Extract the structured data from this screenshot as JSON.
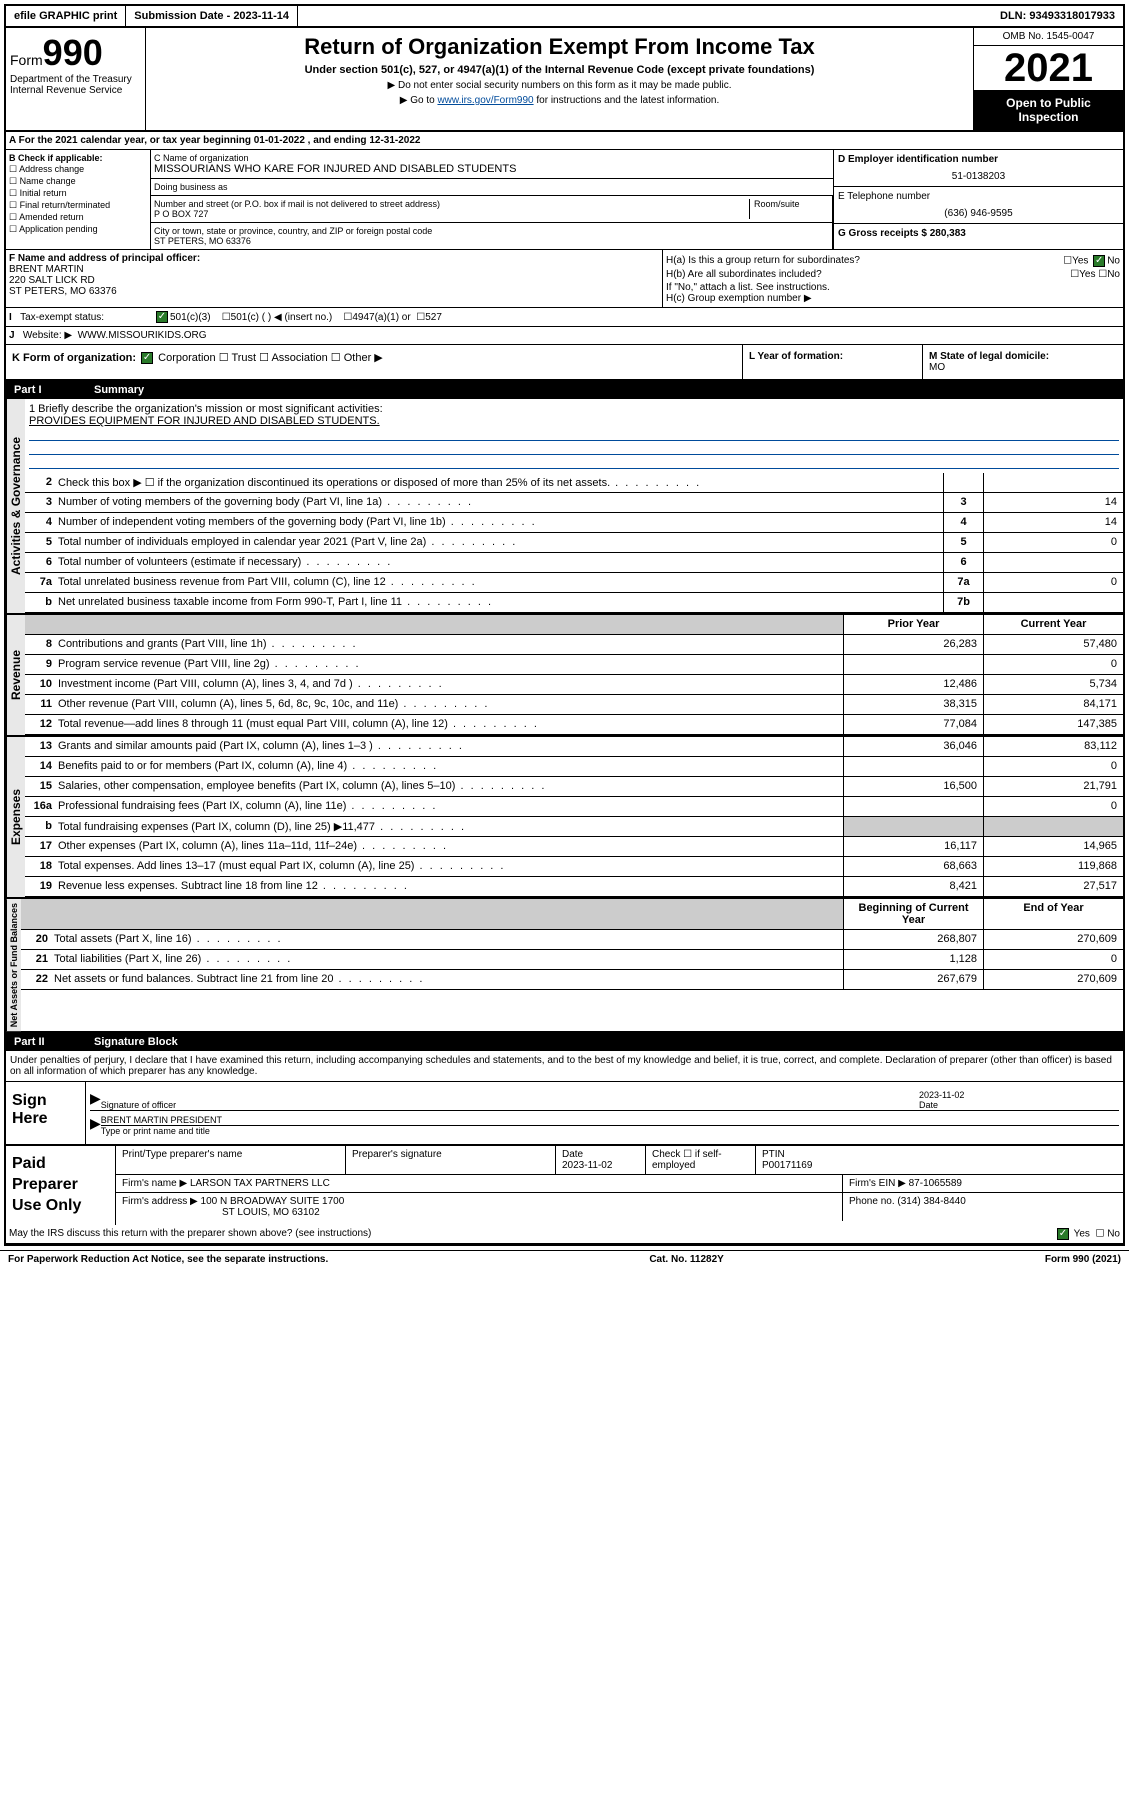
{
  "top": {
    "efile": "efile GRAPHIC print",
    "submission": "Submission Date - 2023-11-14",
    "dln": "DLN: 93493318017933"
  },
  "header": {
    "form_prefix": "Form",
    "form_num": "990",
    "dept": "Department of the Treasury",
    "irs": "Internal Revenue Service",
    "title": "Return of Organization Exempt From Income Tax",
    "sub": "Under section 501(c), 527, or 4947(a)(1) of the Internal Revenue Code (except private foundations)",
    "note1": "▶ Do not enter social security numbers on this form as it may be made public.",
    "note2_prefix": "▶ Go to ",
    "note2_link": "www.irs.gov/Form990",
    "note2_suffix": " for instructions and the latest information.",
    "omb": "OMB No. 1545-0047",
    "year": "2021",
    "open": "Open to Public Inspection"
  },
  "section_a": "A For the 2021 calendar year, or tax year beginning 01-01-2022   , and ending 12-31-2022",
  "col_b": {
    "title": "B Check if applicable:",
    "opts": [
      "Address change",
      "Name change",
      "Initial return",
      "Final return/terminated",
      "Amended return",
      "Application pending"
    ]
  },
  "org": {
    "name_label": "C Name of organization",
    "name": "MISSOURIANS WHO KARE FOR INJURED AND DISABLED STUDENTS",
    "dba_label": "Doing business as",
    "addr_label": "Number and street (or P.O. box if mail is not delivered to street address)",
    "room_label": "Room/suite",
    "addr": "P O BOX 727",
    "city_label": "City or town, state or province, country, and ZIP or foreign postal code",
    "city": "ST PETERS, MO  63376"
  },
  "col_d": {
    "label": "D Employer identification number",
    "val": "51-0138203",
    "phone_label": "E Telephone number",
    "phone": "(636) 946-9595",
    "gross_label": "G Gross receipts $",
    "gross": "280,383"
  },
  "section_f": {
    "label": "F  Name and address of principal officer:",
    "name": "BRENT MARTIN",
    "addr1": "220 SALT LICK RD",
    "addr2": "ST PETERS, MO  63376",
    "ha": "H(a)  Is this a group return for subordinates?",
    "hb": "H(b)  Are all subordinates included?",
    "hb_note": "If \"No,\" attach a list. See instructions.",
    "hc": "H(c)  Group exemption number ▶"
  },
  "tax_exempt": {
    "label": "Tax-exempt status:",
    "opt1": "501(c)(3)",
    "opt2": "501(c) (  ) ◀ (insert no.)",
    "opt3": "4947(a)(1) or",
    "opt4": "527"
  },
  "website": {
    "label": "Website: ▶",
    "val": "WWW.MISSOURIKIDS.ORG"
  },
  "k_row": {
    "label": "K Form of organization:",
    "opts": [
      "Corporation",
      "Trust",
      "Association",
      "Other ▶"
    ],
    "l_label": "L Year of formation:",
    "m_label": "M State of legal domicile:",
    "m_val": "MO"
  },
  "part1": {
    "label": "Part I",
    "title": "Summary"
  },
  "mission": {
    "q": "1  Briefly describe the organization's mission or most significant activities:",
    "text": "PROVIDES EQUIPMENT FOR INJURED AND DISABLED STUDENTS."
  },
  "gov_rows": [
    {
      "n": "2",
      "d": "Check this box ▶ ☐  if the organization discontinued its operations or disposed of more than 25% of its net assets.",
      "box": "",
      "v": ""
    },
    {
      "n": "3",
      "d": "Number of voting members of the governing body (Part VI, line 1a)",
      "box": "3",
      "v": "14"
    },
    {
      "n": "4",
      "d": "Number of independent voting members of the governing body (Part VI, line 1b)",
      "box": "4",
      "v": "14"
    },
    {
      "n": "5",
      "d": "Total number of individuals employed in calendar year 2021 (Part V, line 2a)",
      "box": "5",
      "v": "0"
    },
    {
      "n": "6",
      "d": "Total number of volunteers (estimate if necessary)",
      "box": "6",
      "v": ""
    },
    {
      "n": "7a",
      "d": "Total unrelated business revenue from Part VIII, column (C), line 12",
      "box": "7a",
      "v": "0"
    },
    {
      "n": "b",
      "d": "Net unrelated business taxable income from Form 990-T, Part I, line 11",
      "box": "7b",
      "v": ""
    }
  ],
  "col_headers": {
    "prior": "Prior Year",
    "current": "Current Year",
    "begin": "Beginning of Current Year",
    "end": "End of Year"
  },
  "rev_rows": [
    {
      "n": "8",
      "d": "Contributions and grants (Part VIII, line 1h)",
      "p": "26,283",
      "c": "57,480"
    },
    {
      "n": "9",
      "d": "Program service revenue (Part VIII, line 2g)",
      "p": "",
      "c": "0"
    },
    {
      "n": "10",
      "d": "Investment income (Part VIII, column (A), lines 3, 4, and 7d )",
      "p": "12,486",
      "c": "5,734"
    },
    {
      "n": "11",
      "d": "Other revenue (Part VIII, column (A), lines 5, 6d, 8c, 9c, 10c, and 11e)",
      "p": "38,315",
      "c": "84,171"
    },
    {
      "n": "12",
      "d": "Total revenue—add lines 8 through 11 (must equal Part VIII, column (A), line 12)",
      "p": "77,084",
      "c": "147,385"
    }
  ],
  "exp_rows": [
    {
      "n": "13",
      "d": "Grants and similar amounts paid (Part IX, column (A), lines 1–3 )",
      "p": "36,046",
      "c": "83,112"
    },
    {
      "n": "14",
      "d": "Benefits paid to or for members (Part IX, column (A), line 4)",
      "p": "",
      "c": "0"
    },
    {
      "n": "15",
      "d": "Salaries, other compensation, employee benefits (Part IX, column (A), lines 5–10)",
      "p": "16,500",
      "c": "21,791"
    },
    {
      "n": "16a",
      "d": "Professional fundraising fees (Part IX, column (A), line 11e)",
      "p": "",
      "c": "0"
    },
    {
      "n": "b",
      "d": "Total fundraising expenses (Part IX, column (D), line 25) ▶11,477",
      "p": "shaded",
      "c": "shaded"
    },
    {
      "n": "17",
      "d": "Other expenses (Part IX, column (A), lines 11a–11d, 11f–24e)",
      "p": "16,117",
      "c": "14,965"
    },
    {
      "n": "18",
      "d": "Total expenses. Add lines 13–17 (must equal Part IX, column (A), line 25)",
      "p": "68,663",
      "c": "119,868"
    },
    {
      "n": "19",
      "d": "Revenue less expenses. Subtract line 18 from line 12",
      "p": "8,421",
      "c": "27,517"
    }
  ],
  "net_rows": [
    {
      "n": "20",
      "d": "Total assets (Part X, line 16)",
      "p": "268,807",
      "c": "270,609"
    },
    {
      "n": "21",
      "d": "Total liabilities (Part X, line 26)",
      "p": "1,128",
      "c": "0"
    },
    {
      "n": "22",
      "d": "Net assets or fund balances. Subtract line 21 from line 20",
      "p": "267,679",
      "c": "270,609"
    }
  ],
  "part2": {
    "label": "Part II",
    "title": "Signature Block"
  },
  "penalty": "Under penalties of perjury, I declare that I have examined this return, including accompanying schedules and statements, and to the best of my knowledge and belief, it is true, correct, and complete. Declaration of preparer (other than officer) is based on all information of which preparer has any knowledge.",
  "sign": {
    "here": "Sign Here",
    "sig_label": "Signature of officer",
    "date_label": "Date",
    "date": "2023-11-02",
    "name": "BRENT MARTIN PRESIDENT",
    "name_label": "Type or print name and title"
  },
  "preparer": {
    "label": "Paid Preparer Use Only",
    "h1": "Print/Type preparer's name",
    "h2": "Preparer's signature",
    "h3": "Date",
    "h3v": "2023-11-02",
    "h4": "Check ☐ if self-employed",
    "h5": "PTIN",
    "h5v": "P00171169",
    "firm_label": "Firm's name      ▶",
    "firm": "LARSON TAX PARTNERS LLC",
    "ein_label": "Firm's EIN ▶",
    "ein": "87-1065589",
    "addr_label": "Firm's address ▶",
    "addr": "100 N BROADWAY SUITE 1700",
    "addr2": "ST LOUIS, MO  63102",
    "phone_label": "Phone no.",
    "phone": "(314) 384-8440"
  },
  "discuss": "May the IRS discuss this return with the preparer shown above? (see instructions)",
  "footer": {
    "left": "For Paperwork Reduction Act Notice, see the separate instructions.",
    "mid": "Cat. No. 11282Y",
    "right": "Form 990 (2021)"
  },
  "vert_labels": {
    "gov": "Activities & Governance",
    "rev": "Revenue",
    "exp": "Expenses",
    "net": "Net Assets or Fund Balances"
  }
}
